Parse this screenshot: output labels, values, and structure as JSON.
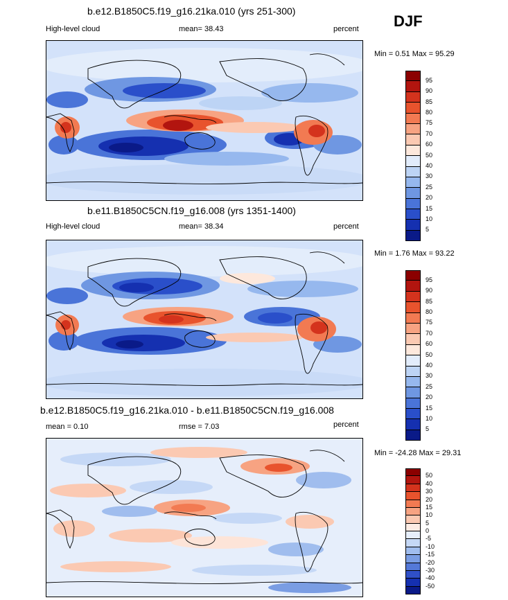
{
  "season": "DJF",
  "panels": [
    {
      "title": "b.e12.B1850C5.f19_g16.21ka.010 (yrs 251-300)",
      "left_label": "High-level cloud",
      "center_label": "mean=  38.43",
      "right_label": "percent",
      "minmax": "Min =   0.51 Max =  95.29",
      "colorbar_labels": [
        "95",
        "90",
        "85",
        "80",
        "75",
        "70",
        "60",
        "50",
        "40",
        "30",
        "25",
        "20",
        "15",
        "10",
        "5"
      ],
      "colorbar_colors": [
        "#8b0000",
        "#b2150f",
        "#d4331d",
        "#e8532d",
        "#f27a52",
        "#f7a382",
        "#fbc9b2",
        "#fde8dc",
        "#e2ecfb",
        "#bdd4f5",
        "#96b8ee",
        "#6f97e2",
        "#4a74d8",
        "#2a4fca",
        "#1530b0",
        "#0a1a88"
      ]
    },
    {
      "title": "b.e11.B1850C5CN.f19_g16.008 (yrs 1351-1400)",
      "left_label": "High-level cloud",
      "center_label": "mean=  38.34",
      "right_label": "percent",
      "minmax": "Min =   1.76 Max =  93.22",
      "colorbar_labels": [
        "95",
        "90",
        "85",
        "80",
        "75",
        "70",
        "60",
        "50",
        "40",
        "30",
        "25",
        "20",
        "15",
        "10",
        "5"
      ],
      "colorbar_colors": [
        "#8b0000",
        "#b2150f",
        "#d4331d",
        "#e8532d",
        "#f27a52",
        "#f7a382",
        "#fbc9b2",
        "#fde8dc",
        "#e2ecfb",
        "#bdd4f5",
        "#96b8ee",
        "#6f97e2",
        "#4a74d8",
        "#2a4fca",
        "#1530b0",
        "#0a1a88"
      ]
    },
    {
      "title": "b.e12.B1850C5.f19_g16.21ka.010 - b.e11.B1850C5CN.f19_g16.008",
      "left_label": "mean =   0.10",
      "center_label": "rmse =   7.03",
      "right_label": "percent",
      "minmax": "Min = -24.28 Max =  29.31",
      "colorbar_labels": [
        "50",
        "40",
        "30",
        "20",
        "15",
        "10",
        "5",
        "0",
        "-5",
        "-10",
        "-15",
        "-20",
        "-30",
        "-40",
        "-50"
      ],
      "colorbar_colors": [
        "#8b0000",
        "#b2150f",
        "#d4331d",
        "#e8532d",
        "#f27a52",
        "#f7a382",
        "#fbc9b2",
        "#fdece4",
        "#e6eefb",
        "#c5d8f6",
        "#a0bdee",
        "#7a9de3",
        "#5479d8",
        "#3050c8",
        "#1530b0",
        "#0a1a88"
      ]
    }
  ]
}
